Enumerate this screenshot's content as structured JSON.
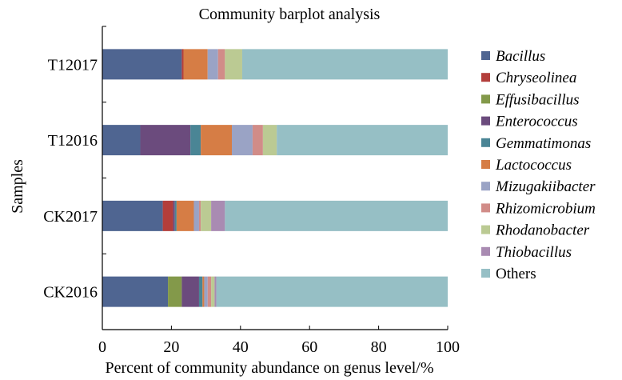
{
  "chart_data": {
    "type": "bar",
    "orientation": "horizontal",
    "stacked": true,
    "title": "Community barplot analysis",
    "xlabel": "Percent of community abundance on genus level/%",
    "ylabel": "Samples",
    "xlim": [
      0,
      100
    ],
    "xticks": [
      "0",
      "20",
      "40",
      "60",
      "80",
      "100"
    ],
    "grid": false,
    "legend_position": "right",
    "categories": [
      "T12017",
      "T12016",
      "CK2017",
      "CK2016"
    ],
    "series": [
      {
        "name": "Bacillus",
        "color": "#4f6591",
        "values": [
          23,
          11,
          17.5,
          19
        ]
      },
      {
        "name": "Chryseolinea",
        "color": "#b33e3b",
        "values": [
          0.5,
          0,
          3,
          0
        ]
      },
      {
        "name": "Effusibacillus",
        "color": "#83994a",
        "values": [
          0,
          0,
          0,
          4
        ]
      },
      {
        "name": "Enterococcus",
        "color": "#6b4b7d",
        "values": [
          0,
          14.5,
          0.5,
          5
        ]
      },
      {
        "name": "Gemmatimonas",
        "color": "#4a8595",
        "values": [
          0,
          3,
          0.5,
          1
        ]
      },
      {
        "name": "Lactococcus",
        "color": "#d67d45",
        "values": [
          7,
          9,
          5,
          0.5
        ]
      },
      {
        "name": "Mizugakiibacter",
        "color": "#9aa3c5",
        "values": [
          3,
          6,
          1.5,
          1
        ]
      },
      {
        "name": "Rhizomicrobium",
        "color": "#d18c88",
        "values": [
          2,
          3,
          0.5,
          1
        ]
      },
      {
        "name": "Rhodanobacter",
        "color": "#bbca93",
        "values": [
          5,
          4,
          3,
          1
        ]
      },
      {
        "name": "Thiobacillus",
        "color": "#a98bb2",
        "values": [
          0,
          0,
          4,
          0.5
        ]
      },
      {
        "name": "Others",
        "color": "#96bfc5",
        "values": [
          59.5,
          49.5,
          64.5,
          67
        ]
      }
    ]
  }
}
